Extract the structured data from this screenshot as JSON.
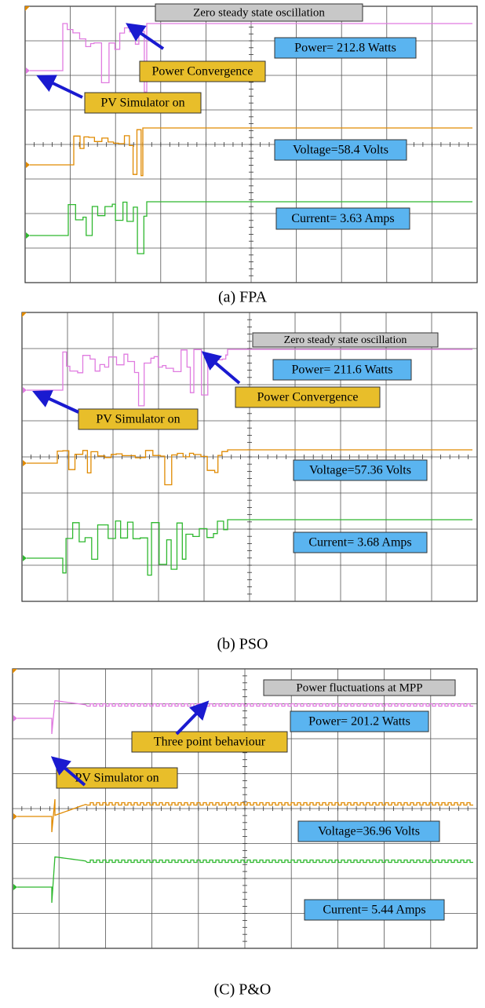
{
  "panels": [
    {
      "caption": "(a) FPA",
      "note": "Zero steady state oscillation",
      "power": "Power= 212.8 Watts",
      "marker": "Power Convergence",
      "sim": "PV Simulator on",
      "voltage": "Voltage=58.4 Volts",
      "current": "Current= 3.63 Amps"
    },
    {
      "caption": "(b) PSO",
      "note": "Zero steady state oscillation",
      "power": "Power= 211.6 Watts",
      "marker": "Power Convergence",
      "sim": "PV Simulator on",
      "voltage": "Voltage=57.36 Volts",
      "current": "Current= 3.68 Amps"
    },
    {
      "caption": "(C) P&O",
      "note": "Power fluctuations at MPP",
      "power": "Power= 201.2 Watts",
      "marker": "Three point behaviour",
      "sim": "PV Simulator on",
      "voltage": "Voltage=36.96 Volts",
      "current": "Current= 5.44 Amps"
    }
  ]
}
